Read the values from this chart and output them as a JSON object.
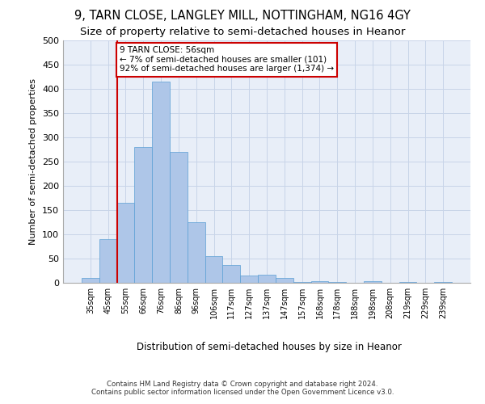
{
  "title_line1": "9, TARN CLOSE, LANGLEY MILL, NOTTINGHAM, NG16 4GY",
  "title_line2": "Size of property relative to semi-detached houses in Heanor",
  "xlabel": "Distribution of semi-detached houses by size in Heanor",
  "ylabel": "Number of semi-detached properties",
  "footnote": "Contains HM Land Registry data © Crown copyright and database right 2024.\nContains public sector information licensed under the Open Government Licence v3.0.",
  "categories": [
    "35sqm",
    "45sqm",
    "55sqm",
    "66sqm",
    "76sqm",
    "86sqm",
    "96sqm",
    "106sqm",
    "117sqm",
    "127sqm",
    "137sqm",
    "147sqm",
    "157sqm",
    "168sqm",
    "178sqm",
    "188sqm",
    "198sqm",
    "208sqm",
    "219sqm",
    "229sqm",
    "239sqm"
  ],
  "values": [
    10,
    90,
    165,
    280,
    415,
    270,
    125,
    55,
    37,
    15,
    17,
    10,
    2,
    3,
    2,
    0,
    3,
    0,
    1,
    0,
    2
  ],
  "bar_color": "#aec6e8",
  "bar_edge_color": "#5a9fd4",
  "property_label": "9 TARN CLOSE: 56sqm",
  "pct_smaller": 7,
  "n_smaller": 101,
  "pct_larger": 92,
  "n_larger": 1374,
  "vline_color": "#cc0000",
  "annotation_box_color": "#cc0000",
  "ylim": [
    0,
    500
  ],
  "yticks": [
    0,
    50,
    100,
    150,
    200,
    250,
    300,
    350,
    400,
    450,
    500
  ],
  "grid_color": "#c8d4e8",
  "background_color": "#e8eef8",
  "title_fontsize": 10.5,
  "subtitle_fontsize": 9.5,
  "vline_x_index": 1.5
}
